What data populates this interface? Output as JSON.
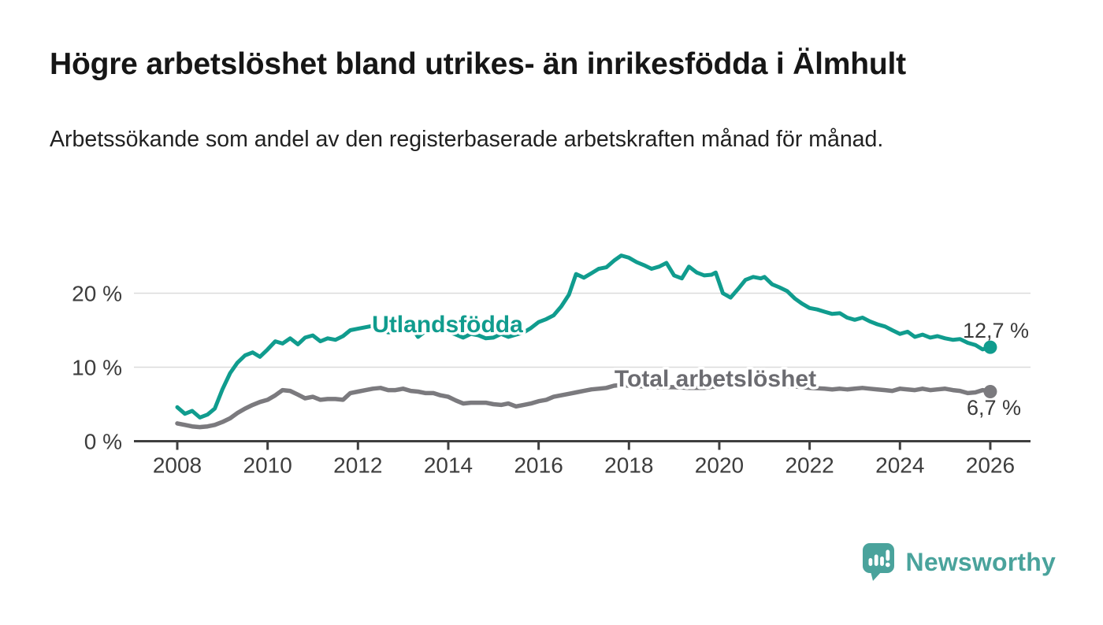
{
  "header": {
    "title": "Högre arbetslöshet bland utrikes- än inrikesfödda i Älmhult",
    "subtitle": "Arbetssökande som andel av den registerbaserade arbetskraften månad för månad."
  },
  "branding": {
    "name": "Newsworthy",
    "icon": "speech-bubble-with-bar-chart-and-exclamation",
    "color": "#4AA39C"
  },
  "chart_data": {
    "type": "line",
    "title": "Högre arbetslöshet bland utrikes- än inrikesfödda i Älmhult",
    "xlabel": "",
    "ylabel": "",
    "grid": "horizontal",
    "legend_position": "inline-labels",
    "x_axis": {
      "ticks": [
        2008,
        2010,
        2012,
        2014,
        2016,
        2018,
        2020,
        2022,
        2024,
        2026
      ],
      "range": [
        2008,
        2026.9
      ]
    },
    "y_axis": {
      "ticks": [
        {
          "value": 0,
          "label": "0 %"
        },
        {
          "value": 10,
          "label": "10 %"
        },
        {
          "value": 20,
          "label": "20 %"
        }
      ],
      "range": [
        0,
        27
      ]
    },
    "colors": {
      "axis": "#3F3F3F",
      "grid": "#DBDBDB",
      "tick_text": "#3D3D3D",
      "value_label_text": "#3A3A3A"
    },
    "series": [
      {
        "name": "Utlandsfödda",
        "color": "#109C8E",
        "label_color": "#109C8E",
        "end_label": "12,7 %",
        "end_value": 12.7,
        "points": [
          [
            2008.0,
            4.6
          ],
          [
            2008.17,
            3.7
          ],
          [
            2008.33,
            4.1
          ],
          [
            2008.5,
            3.2
          ],
          [
            2008.67,
            3.6
          ],
          [
            2008.83,
            4.4
          ],
          [
            2009.0,
            7.0
          ],
          [
            2009.17,
            9.2
          ],
          [
            2009.33,
            10.6
          ],
          [
            2009.5,
            11.6
          ],
          [
            2009.67,
            12.0
          ],
          [
            2009.83,
            11.4
          ],
          [
            2010.0,
            12.4
          ],
          [
            2010.17,
            13.5
          ],
          [
            2010.33,
            13.2
          ],
          [
            2010.5,
            13.9
          ],
          [
            2010.67,
            13.1
          ],
          [
            2010.83,
            14.0
          ],
          [
            2011.0,
            14.3
          ],
          [
            2011.17,
            13.5
          ],
          [
            2011.33,
            13.9
          ],
          [
            2011.5,
            13.7
          ],
          [
            2011.67,
            14.2
          ],
          [
            2011.83,
            15.0
          ],
          [
            2012.0,
            15.2
          ],
          [
            2012.17,
            15.4
          ],
          [
            2012.33,
            15.6
          ],
          [
            2012.5,
            15.1
          ],
          [
            2012.67,
            14.7
          ],
          [
            2012.83,
            14.8
          ],
          [
            2013.0,
            15.3
          ],
          [
            2013.17,
            15.6
          ],
          [
            2013.33,
            14.1
          ],
          [
            2013.5,
            14.9
          ],
          [
            2013.67,
            15.1
          ],
          [
            2013.83,
            14.7
          ],
          [
            2014.0,
            14.8
          ],
          [
            2014.17,
            14.4
          ],
          [
            2014.33,
            14.0
          ],
          [
            2014.5,
            14.5
          ],
          [
            2014.67,
            14.3
          ],
          [
            2014.83,
            13.9
          ],
          [
            2015.0,
            14.0
          ],
          [
            2015.17,
            14.5
          ],
          [
            2015.33,
            14.1
          ],
          [
            2015.5,
            14.4
          ],
          [
            2015.67,
            14.7
          ],
          [
            2015.83,
            15.3
          ],
          [
            2016.0,
            16.1
          ],
          [
            2016.17,
            16.5
          ],
          [
            2016.33,
            17.0
          ],
          [
            2016.5,
            18.2
          ],
          [
            2016.67,
            19.8
          ],
          [
            2016.83,
            22.6
          ],
          [
            2017.0,
            22.1
          ],
          [
            2017.17,
            22.7
          ],
          [
            2017.33,
            23.3
          ],
          [
            2017.5,
            23.5
          ],
          [
            2017.67,
            24.4
          ],
          [
            2017.83,
            25.1
          ],
          [
            2018.0,
            24.8
          ],
          [
            2018.17,
            24.2
          ],
          [
            2018.33,
            23.8
          ],
          [
            2018.5,
            23.3
          ],
          [
            2018.67,
            23.6
          ],
          [
            2018.83,
            24.1
          ],
          [
            2019.0,
            22.4
          ],
          [
            2019.17,
            22.0
          ],
          [
            2019.33,
            23.6
          ],
          [
            2019.5,
            22.8
          ],
          [
            2019.67,
            22.4
          ],
          [
            2019.83,
            22.5
          ],
          [
            2019.92,
            22.8
          ],
          [
            2020.08,
            20.0
          ],
          [
            2020.25,
            19.4
          ],
          [
            2020.42,
            20.6
          ],
          [
            2020.58,
            21.8
          ],
          [
            2020.75,
            22.2
          ],
          [
            2020.92,
            22.0
          ],
          [
            2021.0,
            22.2
          ],
          [
            2021.17,
            21.2
          ],
          [
            2021.33,
            20.8
          ],
          [
            2021.5,
            20.3
          ],
          [
            2021.67,
            19.3
          ],
          [
            2021.83,
            18.6
          ],
          [
            2022.0,
            18.0
          ],
          [
            2022.17,
            17.8
          ],
          [
            2022.33,
            17.5
          ],
          [
            2022.5,
            17.2
          ],
          [
            2022.67,
            17.3
          ],
          [
            2022.83,
            16.7
          ],
          [
            2023.0,
            16.4
          ],
          [
            2023.17,
            16.7
          ],
          [
            2023.33,
            16.2
          ],
          [
            2023.5,
            15.8
          ],
          [
            2023.67,
            15.5
          ],
          [
            2023.83,
            15.0
          ],
          [
            2024.0,
            14.5
          ],
          [
            2024.17,
            14.8
          ],
          [
            2024.33,
            14.1
          ],
          [
            2024.5,
            14.4
          ],
          [
            2024.67,
            14.0
          ],
          [
            2024.83,
            14.2
          ],
          [
            2025.0,
            13.9
          ],
          [
            2025.17,
            13.7
          ],
          [
            2025.33,
            13.8
          ],
          [
            2025.5,
            13.3
          ],
          [
            2025.67,
            13.0
          ],
          [
            2025.83,
            12.4
          ],
          [
            2026.0,
            12.7
          ]
        ]
      },
      {
        "name": "Total arbetslöshet",
        "color": "#7B7A7E",
        "label_color": "#6C6C71",
        "end_label": "6,7 %",
        "end_value": 6.7,
        "points": [
          [
            2008.0,
            2.4
          ],
          [
            2008.17,
            2.2
          ],
          [
            2008.33,
            2.0
          ],
          [
            2008.5,
            1.9
          ],
          [
            2008.67,
            2.0
          ],
          [
            2008.83,
            2.2
          ],
          [
            2009.0,
            2.6
          ],
          [
            2009.17,
            3.1
          ],
          [
            2009.33,
            3.8
          ],
          [
            2009.5,
            4.4
          ],
          [
            2009.67,
            4.9
          ],
          [
            2009.83,
            5.3
          ],
          [
            2010.0,
            5.6
          ],
          [
            2010.17,
            6.2
          ],
          [
            2010.33,
            6.9
          ],
          [
            2010.5,
            6.8
          ],
          [
            2010.67,
            6.3
          ],
          [
            2010.83,
            5.8
          ],
          [
            2011.0,
            6.0
          ],
          [
            2011.17,
            5.6
          ],
          [
            2011.33,
            5.7
          ],
          [
            2011.5,
            5.7
          ],
          [
            2011.67,
            5.6
          ],
          [
            2011.83,
            6.5
          ],
          [
            2012.0,
            6.7
          ],
          [
            2012.17,
            6.9
          ],
          [
            2012.33,
            7.1
          ],
          [
            2012.5,
            7.2
          ],
          [
            2012.67,
            6.9
          ],
          [
            2012.83,
            6.9
          ],
          [
            2013.0,
            7.1
          ],
          [
            2013.17,
            6.8
          ],
          [
            2013.33,
            6.7
          ],
          [
            2013.5,
            6.5
          ],
          [
            2013.67,
            6.5
          ],
          [
            2013.83,
            6.2
          ],
          [
            2014.0,
            6.0
          ],
          [
            2014.17,
            5.5
          ],
          [
            2014.33,
            5.1
          ],
          [
            2014.5,
            5.2
          ],
          [
            2014.67,
            5.2
          ],
          [
            2014.83,
            5.2
          ],
          [
            2015.0,
            5.0
          ],
          [
            2015.17,
            4.9
          ],
          [
            2015.33,
            5.1
          ],
          [
            2015.5,
            4.7
          ],
          [
            2015.67,
            4.9
          ],
          [
            2015.83,
            5.1
          ],
          [
            2016.0,
            5.4
          ],
          [
            2016.17,
            5.6
          ],
          [
            2016.33,
            6.0
          ],
          [
            2016.5,
            6.2
          ],
          [
            2016.67,
            6.4
          ],
          [
            2016.83,
            6.6
          ],
          [
            2017.0,
            6.8
          ],
          [
            2017.17,
            7.0
          ],
          [
            2017.33,
            7.1
          ],
          [
            2017.5,
            7.2
          ],
          [
            2017.67,
            7.5
          ],
          [
            2017.83,
            7.6
          ],
          [
            2018.0,
            7.5
          ],
          [
            2018.33,
            7.4
          ],
          [
            2018.67,
            7.3
          ],
          [
            2019.0,
            7.3
          ],
          [
            2019.33,
            7.2
          ],
          [
            2019.67,
            7.2
          ],
          [
            2020.0,
            7.5
          ],
          [
            2020.33,
            7.9
          ],
          [
            2020.67,
            7.8
          ],
          [
            2021.0,
            7.7
          ],
          [
            2021.33,
            7.5
          ],
          [
            2021.67,
            7.4
          ],
          [
            2022.0,
            7.2
          ],
          [
            2022.33,
            7.1
          ],
          [
            2022.5,
            7.0
          ],
          [
            2022.67,
            7.1
          ],
          [
            2022.83,
            7.0
          ],
          [
            2023.0,
            7.1
          ],
          [
            2023.17,
            7.2
          ],
          [
            2023.33,
            7.1
          ],
          [
            2023.5,
            7.0
          ],
          [
            2023.67,
            6.9
          ],
          [
            2023.83,
            6.8
          ],
          [
            2024.0,
            7.1
          ],
          [
            2024.17,
            7.0
          ],
          [
            2024.33,
            6.9
          ],
          [
            2024.5,
            7.1
          ],
          [
            2024.67,
            6.9
          ],
          [
            2024.83,
            7.0
          ],
          [
            2025.0,
            7.1
          ],
          [
            2025.17,
            6.9
          ],
          [
            2025.33,
            6.8
          ],
          [
            2025.5,
            6.5
          ],
          [
            2025.67,
            6.6
          ],
          [
            2025.83,
            6.9
          ],
          [
            2026.0,
            6.7
          ]
        ]
      }
    ]
  }
}
